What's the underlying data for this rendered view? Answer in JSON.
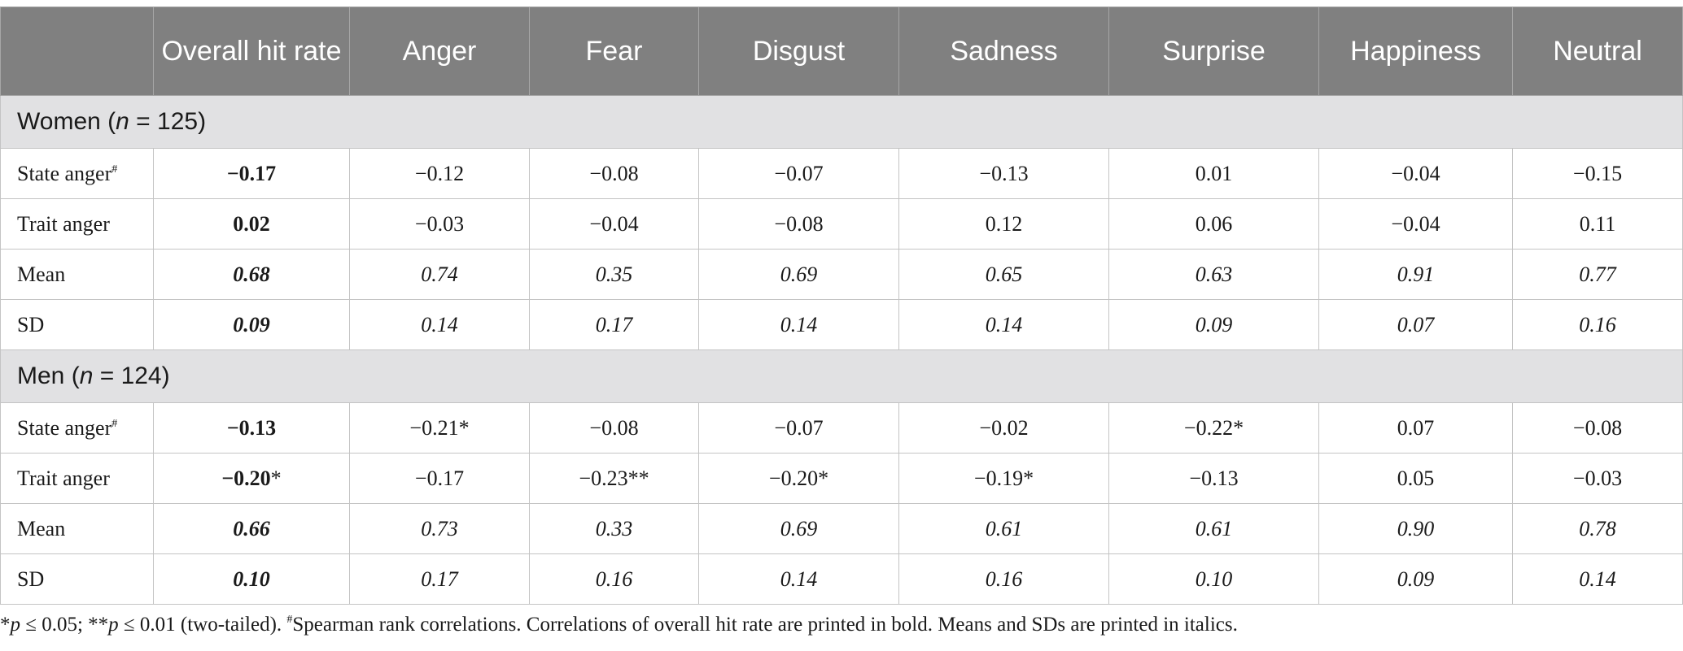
{
  "columns": [
    "",
    "Overall hit rate",
    "Anger",
    "Fear",
    "Disgust",
    "Sadness",
    "Surprise",
    "Happiness",
    "Neutral"
  ],
  "groups": [
    {
      "label_prefix": "Women (",
      "label_n": "n",
      "label_suffix": " = 125)",
      "rows": [
        {
          "label": "State anger",
          "mark": "#",
          "cells": [
            "−0.17",
            "−0.12",
            "−0.08",
            "−0.07",
            "−0.13",
            "0.01",
            "−0.04",
            "−0.15"
          ]
        },
        {
          "label": "Trait anger",
          "mark": "",
          "cells": [
            "0.02",
            "−0.03",
            "−0.04",
            "−0.08",
            "0.12",
            "0.06",
            "−0.04",
            "0.11"
          ]
        },
        {
          "label": "Mean",
          "mark": "",
          "cells": [
            "0.68",
            "0.74",
            "0.35",
            "0.69",
            "0.65",
            "0.63",
            "0.91",
            "0.77"
          ]
        },
        {
          "label": "SD",
          "mark": "",
          "cells": [
            "0.09",
            "0.14",
            "0.17",
            "0.14",
            "0.14",
            "0.09",
            "0.07",
            "0.16"
          ]
        }
      ]
    },
    {
      "label_prefix": "Men (",
      "label_n": "n",
      "label_suffix": " = 124)",
      "rows": [
        {
          "label": "State anger",
          "mark": "#",
          "cells": [
            "−0.13",
            "−0.21*",
            "−0.08",
            "−0.07",
            "−0.02",
            "−0.22*",
            "0.07",
            "−0.08"
          ]
        },
        {
          "label": "Trait anger",
          "mark": "",
          "cells": [
            "−0.20*",
            "−0.17",
            "−0.23**",
            "−0.20*",
            "−0.19*",
            "−0.13",
            "0.05",
            "−0.03"
          ]
        },
        {
          "label": "Mean",
          "mark": "",
          "cells": [
            "0.66",
            "0.73",
            "0.33",
            "0.69",
            "0.61",
            "0.61",
            "0.90",
            "0.78"
          ]
        },
        {
          "label": "SD",
          "mark": "",
          "cells": [
            "0.10",
            "0.17",
            "0.16",
            "0.14",
            "0.16",
            "0.10",
            "0.09",
            "0.14"
          ]
        }
      ]
    }
  ],
  "footnote": {
    "p1": "p",
    "t1": " ≤ 0.05; **",
    "p2": "p",
    "t2": " ≤ 0.01 (two-tailed). ",
    "mark": "#",
    "t3": "Spearman rank correlations. Correlations of overall hit rate are printed in bold. Means and SDs are printed in italics.",
    "lead": "*"
  }
}
